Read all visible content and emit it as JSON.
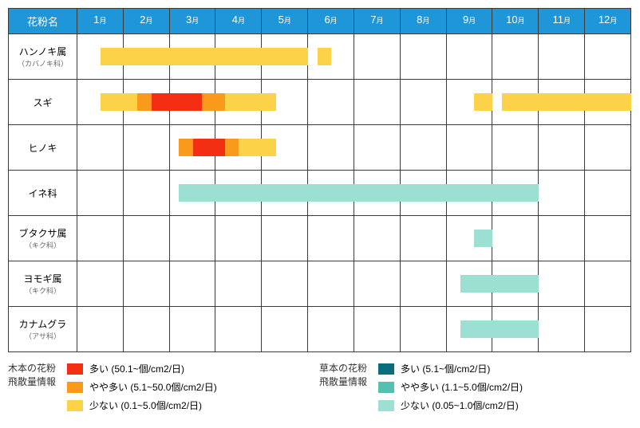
{
  "header": "花粉名",
  "months": [
    "1",
    "2",
    "3",
    "4",
    "5",
    "6",
    "7",
    "8",
    "9",
    "10",
    "11",
    "12"
  ],
  "monthUnit": "月",
  "colors": {
    "headerBg": "#1f96d7",
    "tree_many": "#f42e13",
    "tree_moderate": "#f99a1b",
    "tree_few": "#fcd248",
    "grass_many": "#0a6e7a",
    "grass_moderate": "#55bfb0",
    "grass_few": "#9ce0d3"
  },
  "rows": [
    {
      "name": "ハンノキ属",
      "sub": "（カバノキ科）",
      "bars": [
        {
          "start": 0.5,
          "end": 5.0,
          "color": "tree_few"
        },
        {
          "start": 5.2,
          "end": 5.5,
          "color": "tree_few"
        }
      ]
    },
    {
      "name": "スギ",
      "sub": "",
      "bars": [
        {
          "start": 0.5,
          "end": 1.3,
          "color": "tree_few"
        },
        {
          "start": 1.3,
          "end": 1.6,
          "color": "tree_moderate"
        },
        {
          "start": 1.6,
          "end": 2.7,
          "color": "tree_many"
        },
        {
          "start": 2.7,
          "end": 3.2,
          "color": "tree_moderate"
        },
        {
          "start": 3.2,
          "end": 4.3,
          "color": "tree_few"
        },
        {
          "start": 8.6,
          "end": 9.0,
          "color": "tree_few"
        },
        {
          "start": 9.2,
          "end": 12.0,
          "color": "tree_few"
        }
      ]
    },
    {
      "name": "ヒノキ",
      "sub": "",
      "bars": [
        {
          "start": 2.2,
          "end": 2.5,
          "color": "tree_moderate"
        },
        {
          "start": 2.5,
          "end": 3.2,
          "color": "tree_many"
        },
        {
          "start": 3.2,
          "end": 3.5,
          "color": "tree_moderate"
        },
        {
          "start": 3.5,
          "end": 4.3,
          "color": "tree_few"
        }
      ]
    },
    {
      "name": "イネ科",
      "sub": "",
      "bars": [
        {
          "start": 2.2,
          "end": 10.0,
          "color": "grass_few"
        }
      ]
    },
    {
      "name": "ブタクサ属",
      "sub": "（キク科）",
      "bars": [
        {
          "start": 8.6,
          "end": 9.0,
          "color": "grass_few"
        }
      ]
    },
    {
      "name": "ヨモギ属",
      "sub": "（キク科）",
      "bars": [
        {
          "start": 8.3,
          "end": 10.0,
          "color": "grass_few"
        }
      ]
    },
    {
      "name": "カナムグラ",
      "sub": "（アサ科）",
      "bars": [
        {
          "start": 8.3,
          "end": 10.0,
          "color": "grass_few"
        }
      ]
    }
  ],
  "legend1": {
    "title": "木本の花粉\n飛散量情報",
    "items": [
      {
        "color": "tree_many",
        "label": "多い (50.1~個/cm2/日)"
      },
      {
        "color": "tree_moderate",
        "label": "やや多い (5.1~50.0個/cm2/日)"
      },
      {
        "color": "tree_few",
        "label": "少ない (0.1~5.0個/cm2/日)"
      }
    ]
  },
  "legend2": {
    "title": "草本の花粉\n飛散量情報",
    "items": [
      {
        "color": "grass_many",
        "label": "多い (5.1~個/cm2/日)"
      },
      {
        "color": "grass_moderate",
        "label": "やや多い (1.1~5.0個/cm2/日)"
      },
      {
        "color": "grass_few",
        "label": "少ない (0.05~1.0個/cm2/日)"
      }
    ]
  }
}
